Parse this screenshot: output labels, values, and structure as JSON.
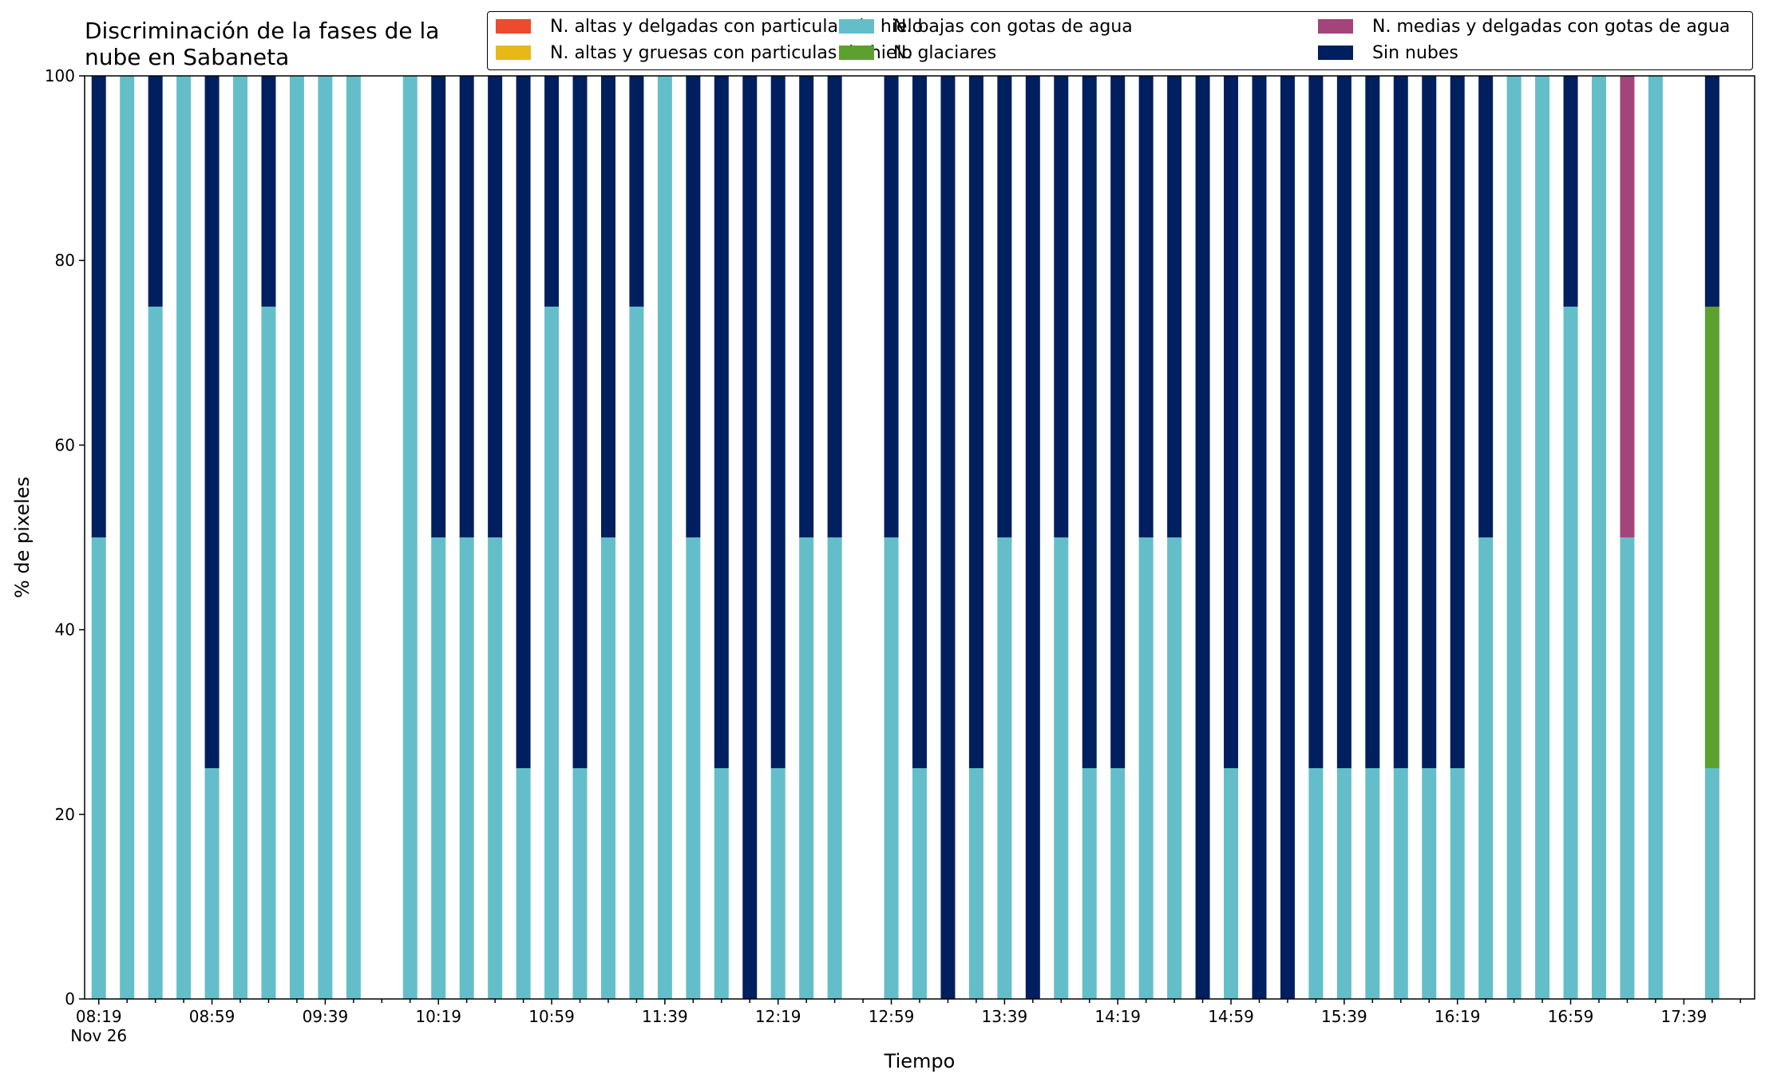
{
  "chart_data": {
    "type": "bar",
    "stacked": true,
    "title": "Discriminación de la fases de la nube en Sabaneta",
    "title_lines": [
      "Discriminación de la fases de la",
      "nube en Sabaneta"
    ],
    "xlabel": "Tiempo",
    "ylabel": "% de pixeles",
    "ylim": [
      0,
      100
    ],
    "yticks": [
      0,
      20,
      40,
      60,
      80,
      100
    ],
    "xtick_labels": [
      {
        "index": 0,
        "label": "08:19",
        "sublabel": "Nov 26"
      },
      {
        "index": 4,
        "label": "08:59"
      },
      {
        "index": 8,
        "label": "09:39"
      },
      {
        "index": 12,
        "label": "10:19"
      },
      {
        "index": 16,
        "label": "10:59"
      },
      {
        "index": 20,
        "label": "11:39"
      },
      {
        "index": 24,
        "label": "12:19"
      },
      {
        "index": 28,
        "label": "12:59"
      },
      {
        "index": 32,
        "label": "13:39"
      },
      {
        "index": 36,
        "label": "14:19"
      },
      {
        "index": 40,
        "label": "14:59"
      },
      {
        "index": 44,
        "label": "15:39"
      },
      {
        "index": 48,
        "label": "16:19"
      },
      {
        "index": 52,
        "label": "16:59"
      },
      {
        "index": 56,
        "label": "17:39"
      }
    ],
    "legend_position": "top-right",
    "series": [
      {
        "name": "N. altas y delgadas con particulas de hielo",
        "color": "#ee4a2e",
        "values": [
          0,
          0,
          0,
          0,
          0,
          0,
          0,
          0,
          0,
          0,
          0,
          0,
          0,
          0,
          0,
          0,
          0,
          0,
          0,
          0,
          0,
          0,
          0,
          0,
          0,
          0,
          0,
          0,
          0,
          0,
          0,
          0,
          0,
          0,
          0,
          0,
          0,
          0,
          0,
          0,
          0,
          0,
          0,
          0,
          0,
          0,
          0,
          0,
          0,
          0,
          0,
          0,
          0,
          0,
          0,
          0,
          0,
          0,
          0
        ]
      },
      {
        "name": "N. altas y gruesas con particulas de hielo",
        "color": "#e6b919",
        "values": [
          0,
          0,
          0,
          0,
          0,
          0,
          0,
          0,
          0,
          0,
          0,
          0,
          0,
          0,
          0,
          0,
          0,
          0,
          0,
          0,
          0,
          0,
          0,
          0,
          0,
          0,
          0,
          0,
          0,
          0,
          0,
          0,
          0,
          0,
          0,
          0,
          0,
          0,
          0,
          0,
          0,
          0,
          0,
          0,
          0,
          0,
          0,
          0,
          0,
          0,
          0,
          0,
          0,
          0,
          0,
          0,
          0,
          0,
          0
        ]
      },
      {
        "name": "N. bajas con gotas de agua",
        "color": "#64bec9",
        "values": [
          50,
          100,
          75,
          100,
          25,
          100,
          75,
          100,
          100,
          100,
          0,
          100,
          50,
          50,
          50,
          25,
          75,
          25,
          50,
          75,
          100,
          50,
          25,
          0,
          25,
          50,
          50,
          0,
          50,
          25,
          0,
          25,
          50,
          0,
          50,
          25,
          25,
          50,
          50,
          0,
          25,
          0,
          0,
          25,
          25,
          25,
          25,
          25,
          25,
          50,
          100,
          100,
          75,
          100,
          50,
          100,
          0,
          25,
          0
        ]
      },
      {
        "name": "N. glaciares",
        "color": "#5ca02e",
        "values": [
          0,
          0,
          0,
          0,
          0,
          0,
          0,
          0,
          0,
          0,
          0,
          0,
          0,
          0,
          0,
          0,
          0,
          0,
          0,
          0,
          0,
          0,
          0,
          0,
          0,
          0,
          0,
          0,
          0,
          0,
          0,
          0,
          0,
          0,
          0,
          0,
          0,
          0,
          0,
          0,
          0,
          0,
          0,
          0,
          0,
          0,
          0,
          0,
          0,
          0,
          0,
          0,
          0,
          0,
          0,
          0,
          0,
          50,
          0
        ]
      },
      {
        "name": "N. medias y delgadas con gotas de agua",
        "color": "#a3457a",
        "values": [
          0,
          0,
          0,
          0,
          0,
          0,
          0,
          0,
          0,
          0,
          0,
          0,
          0,
          0,
          0,
          0,
          0,
          0,
          0,
          0,
          0,
          0,
          0,
          0,
          0,
          0,
          0,
          0,
          0,
          0,
          0,
          0,
          0,
          0,
          0,
          0,
          0,
          0,
          0,
          0,
          0,
          0,
          0,
          0,
          0,
          0,
          0,
          0,
          0,
          0,
          0,
          0,
          0,
          0,
          50,
          0,
          0,
          0,
          0
        ]
      },
      {
        "name": "Sin nubes",
        "color": "#001f5f",
        "values": [
          50,
          0,
          25,
          0,
          75,
          0,
          25,
          0,
          0,
          0,
          0,
          0,
          50,
          50,
          50,
          75,
          25,
          75,
          50,
          25,
          0,
          50,
          75,
          100,
          75,
          50,
          50,
          0,
          50,
          75,
          100,
          75,
          50,
          100,
          50,
          75,
          75,
          50,
          50,
          100,
          75,
          100,
          100,
          75,
          75,
          75,
          75,
          75,
          75,
          50,
          0,
          0,
          25,
          0,
          0,
          0,
          0,
          25,
          0
        ]
      }
    ],
    "present": [
      1,
      1,
      1,
      1,
      1,
      1,
      1,
      1,
      1,
      1,
      0,
      1,
      1,
      1,
      1,
      1,
      1,
      1,
      1,
      1,
      1,
      1,
      1,
      1,
      1,
      1,
      1,
      0,
      1,
      1,
      1,
      1,
      1,
      1,
      1,
      1,
      1,
      1,
      1,
      1,
      1,
      1,
      1,
      1,
      1,
      1,
      1,
      1,
      1,
      1,
      1,
      1,
      1,
      1,
      1,
      1,
      0,
      1,
      0
    ]
  }
}
